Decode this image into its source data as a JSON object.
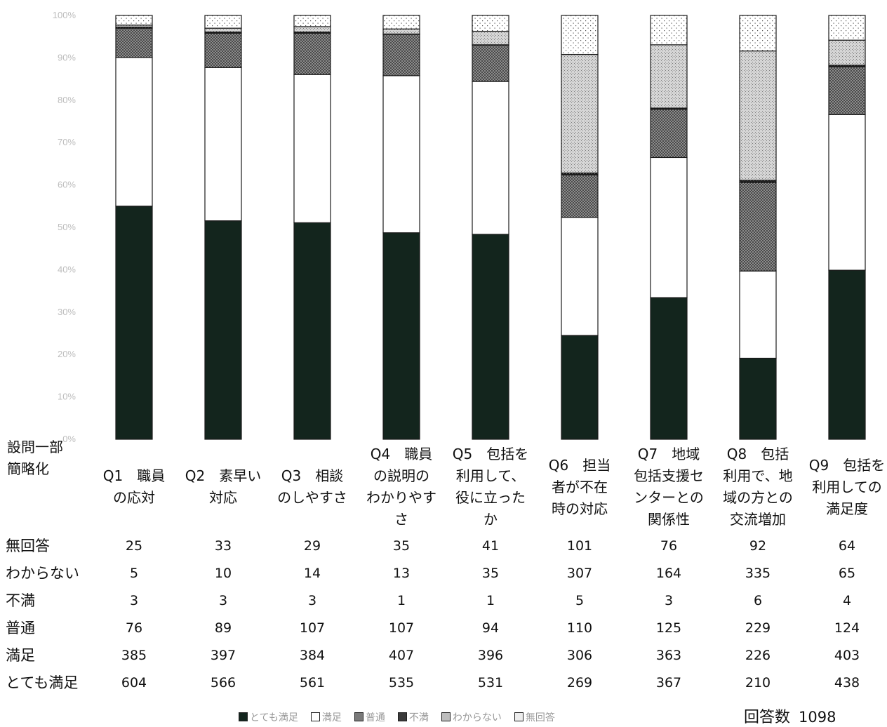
{
  "chart_data": {
    "type": "bar",
    "stacked": true,
    "normalized": true,
    "ylim": [
      0,
      100
    ],
    "yticks": [
      "0%",
      "10%",
      "20%",
      "30%",
      "40%",
      "50%",
      "60%",
      "70%",
      "80%",
      "90%",
      "100%"
    ],
    "categories": [
      [
        "Q1　職員",
        "の応対"
      ],
      [
        "Q2　素早い",
        "対応"
      ],
      [
        "Q3　相談",
        "のしやすさ"
      ],
      [
        "Q4　職員",
        "の説明の",
        "わかりやす",
        "さ"
      ],
      [
        "Q5　包括を",
        "利用して、",
        "役に立った",
        "か"
      ],
      [
        "Q6　担当",
        "者が不在",
        "時の対応"
      ],
      [
        "Q7　地域",
        "包括支援セ",
        "ンターとの",
        "関係性"
      ],
      [
        "Q8　包括",
        "利用で、地",
        "域の方との",
        "交流増加"
      ],
      [
        "Q9　包括を",
        "利用しての",
        "満足度"
      ]
    ],
    "series": [
      {
        "name": "とても満足",
        "color": "#13251d",
        "pattern": "solid",
        "values": [
          604,
          566,
          561,
          535,
          531,
          269,
          367,
          210,
          438
        ]
      },
      {
        "name": "満足",
        "color": "#ffffff",
        "pattern": "none",
        "values": [
          385,
          397,
          384,
          407,
          396,
          306,
          363,
          226,
          403
        ]
      },
      {
        "name": "普通",
        "color": "#7a7a7a",
        "pattern": "crosshatch",
        "values": [
          76,
          89,
          107,
          107,
          94,
          110,
          125,
          229,
          124
        ]
      },
      {
        "name": "不満",
        "color": "#2c2c2c",
        "pattern": "darkcheck",
        "values": [
          3,
          3,
          3,
          1,
          1,
          5,
          3,
          6,
          4
        ]
      },
      {
        "name": "わからない",
        "color": "#c9c9c9",
        "pattern": "lightdots",
        "values": [
          5,
          10,
          14,
          13,
          35,
          307,
          164,
          335,
          65
        ]
      },
      {
        "name": "無回答",
        "color": "#ffffff",
        "pattern": "sparsedots",
        "values": [
          25,
          33,
          29,
          35,
          41,
          101,
          76,
          92,
          64
        ]
      }
    ],
    "table_header": [
      "設問一部",
      "簡略化"
    ],
    "table_row_order": [
      "無回答",
      "わからない",
      "不満",
      "普通",
      "満足",
      "とても満足"
    ],
    "total_label": "回答数",
    "total_value": "1098"
  }
}
